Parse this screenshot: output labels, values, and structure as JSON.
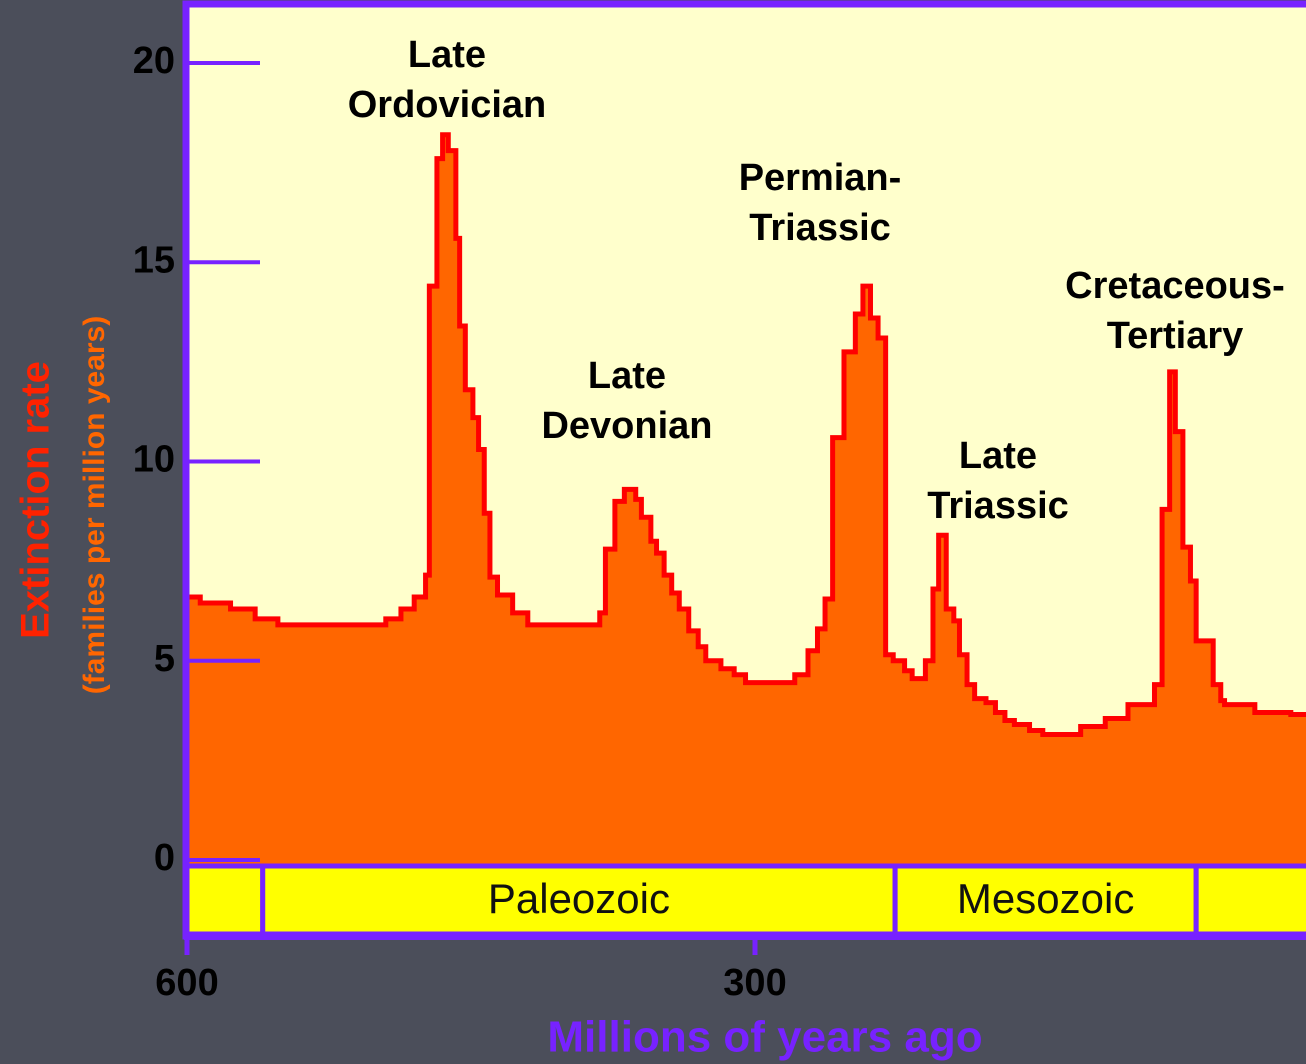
{
  "chart_data": {
    "type": "step-area",
    "x_label": "Millions of years ago",
    "y_label": "Extinction rate",
    "y_sublabel": "(families per million years)",
    "xlim": [
      600,
      0
    ],
    "xticks": [
      600,
      300,
      0
    ],
    "ylim": [
      0,
      20
    ],
    "yticks": [
      0,
      5,
      10,
      15,
      20
    ],
    "fill_color": "#ff6600",
    "line_color": "#ff0000",
    "x": [
      600,
      593,
      577,
      564,
      552,
      495,
      487,
      480,
      474,
      472,
      468,
      465,
      462,
      458,
      456,
      453,
      449,
      446,
      443,
      440,
      436,
      428,
      420,
      382,
      379,
      374,
      369,
      363,
      360,
      355,
      352,
      348,
      344,
      340,
      335,
      330,
      326,
      318,
      311,
      305,
      279,
      272,
      267,
      263,
      259,
      253,
      247,
      243,
      239,
      235,
      231,
      227,
      221,
      217,
      210,
      206,
      203,
      199,
      195,
      192,
      188,
      184,
      178,
      173,
      168,
      163,
      155,
      148,
      128,
      115,
      103,
      89,
      85,
      81,
      78,
      74,
      70,
      67,
      58,
      54,
      52,
      36,
      17
    ],
    "values": [
      6.6,
      6.45,
      6.3,
      6.05,
      5.9,
      6.05,
      6.3,
      6.6,
      7.15,
      14.4,
      17.6,
      18.2,
      17.8,
      15.6,
      13.4,
      11.8,
      11.1,
      10.3,
      8.7,
      7.1,
      6.65,
      6.2,
      5.9,
      6.2,
      7.8,
      9.0,
      9.3,
      9.05,
      8.6,
      8.0,
      7.7,
      7.15,
      6.7,
      6.3,
      5.75,
      5.35,
      5.0,
      4.8,
      4.65,
      4.45,
      4.65,
      5.25,
      5.8,
      6.55,
      10.6,
      12.75,
      13.7,
      14.4,
      13.6,
      13.1,
      5.15,
      5.0,
      4.75,
      4.55,
      5.0,
      6.8,
      8.15,
      6.3,
      6.0,
      5.15,
      4.4,
      4.05,
      3.95,
      3.7,
      3.5,
      3.4,
      3.25,
      3.15,
      3.35,
      3.55,
      3.9,
      4.4,
      8.8,
      12.25,
      10.75,
      7.85,
      7.0,
      5.5,
      4.4,
      4.0,
      3.9,
      3.7,
      3.65
    ],
    "annotations": [
      [
        "Late",
        "Ordovician"
      ],
      [
        "Late",
        "Devonian"
      ],
      [
        "Permian-",
        "Triassic"
      ],
      [
        "Late",
        "Triassic"
      ],
      [
        "Cretaceous-",
        "Tertiary"
      ]
    ],
    "eras": [
      {
        "name": null,
        "start": 600,
        "end": 560
      },
      {
        "name": "Paleozoic",
        "start": 560,
        "end": 226
      },
      {
        "name": "Mesozoic",
        "start": 226,
        "end": 67
      },
      {
        "name": null,
        "start": 67,
        "end": 0
      }
    ]
  }
}
